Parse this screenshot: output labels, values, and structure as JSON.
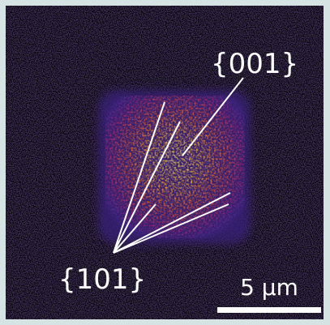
{
  "labels": {
    "face_001": "{001}",
    "face_101": "{101}"
  },
  "scale_bar": {
    "label": "5 µm"
  }
}
